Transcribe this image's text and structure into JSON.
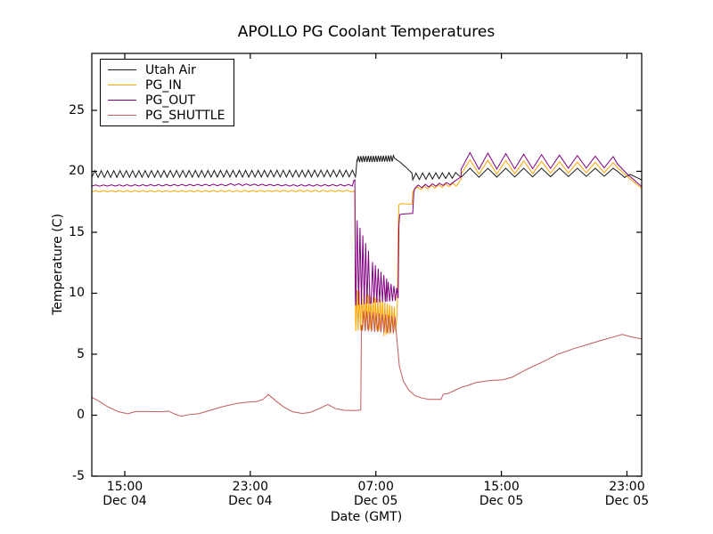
{
  "chart_data": {
    "type": "line",
    "title": "APOLLO PG Coolant Temperatures",
    "xlabel": "Date (GMT)",
    "ylabel": "Temperature (C)",
    "x_unit": "hours since Dec 04 00:00 GMT",
    "xlim": [
      12.9,
      47.94
    ],
    "ylim": [
      -5,
      29.67
    ],
    "grid": false,
    "x_ticks": [
      {
        "v": 15,
        "time": "15:00",
        "date": "Dec 04"
      },
      {
        "v": 23,
        "time": "23:00",
        "date": "Dec 04"
      },
      {
        "v": 31,
        "time": "07:00",
        "date": "Dec 05"
      },
      {
        "v": 39,
        "time": "15:00",
        "date": "Dec 05"
      },
      {
        "v": 47,
        "time": "23:00",
        "date": "Dec 05"
      }
    ],
    "y_ticks": [
      {
        "v": -5,
        "label": "-5"
      },
      {
        "v": 0,
        "label": "0"
      },
      {
        "v": 5,
        "label": "5"
      },
      {
        "v": 10,
        "label": "10"
      },
      {
        "v": 15,
        "label": "15"
      },
      {
        "v": 20,
        "label": "20"
      },
      {
        "v": 25,
        "label": "25"
      }
    ],
    "legend": {
      "position": "upper-left",
      "items": [
        "Utah Air",
        "PG_IN",
        "PG_OUT",
        "PG_SHUTTLE"
      ]
    },
    "series": [
      {
        "name": "Utah Air",
        "color": "#1a1a1a",
        "segments": [
          {
            "t": "osc",
            "x0": 12.9,
            "x1": 29.7,
            "lo0": 19.5,
            "lo1": 19.55,
            "hi0": 20.05,
            "hi1": 20.1,
            "p": 0.4
          },
          {
            "t": "pts",
            "pts": [
              [
                29.73,
                19.85
              ],
              [
                29.8,
                21.0
              ]
            ]
          },
          {
            "t": "osc",
            "x0": 29.8,
            "x1": 32.18,
            "lo0": 20.75,
            "lo1": 20.8,
            "hi0": 21.25,
            "hi1": 21.3,
            "p": 0.16
          },
          {
            "t": "pts",
            "pts": [
              [
                32.2,
                21.05
              ],
              [
                32.55,
                20.75
              ],
              [
                32.9,
                20.35
              ],
              [
                33.3,
                19.85
              ]
            ]
          },
          {
            "t": "osc",
            "x0": 33.35,
            "x1": 36.2,
            "lo0": 19.3,
            "lo1": 19.45,
            "hi0": 19.85,
            "hi1": 19.9,
            "p": 0.42
          },
          {
            "t": "pts",
            "pts": [
              [
                36.43,
                19.5
              ]
            ]
          },
          {
            "t": "osc",
            "x0": 36.43,
            "x1": 46.26,
            "lo0": 19.5,
            "lo1": 19.6,
            "hi0": 20.25,
            "hi1": 20.25,
            "p": 1.14
          },
          {
            "t": "pts",
            "pts": [
              [
                46.4,
                20.0
              ],
              [
                46.85,
                19.5
              ],
              [
                47.2,
                19.75
              ],
              [
                47.94,
                19.3
              ]
            ]
          }
        ]
      },
      {
        "name": "PG_IN",
        "color": "#FFA500",
        "segments": [
          {
            "t": "osc",
            "x0": 12.9,
            "x1": 29.64,
            "lo0": 18.3,
            "lo1": 18.33,
            "hi0": 18.42,
            "hi1": 18.45,
            "p": 0.5
          },
          {
            "t": "pts",
            "pts": [
              [
                29.66,
                18.35
              ],
              [
                29.7,
                8.8
              ]
            ]
          },
          {
            "t": "osc",
            "x0": 29.72,
            "x1": 30.6,
            "lo0": 6.9,
            "lo1": 7.1,
            "hi0": 10.3,
            "hi1": 9.9,
            "p": 0.15
          },
          {
            "t": "osc",
            "x0": 30.6,
            "x1": 31.5,
            "lo0": 7.0,
            "lo1": 6.9,
            "hi0": 9.8,
            "hi1": 9.4,
            "p": 0.15
          },
          {
            "t": "osc",
            "x0": 31.5,
            "x1": 32.3,
            "lo0": 6.5,
            "lo1": 6.9,
            "hi0": 9.3,
            "hi1": 8.8,
            "p": 0.15
          },
          {
            "t": "pts",
            "pts": [
              [
                32.36,
                8.2
              ],
              [
                32.42,
                15.2
              ],
              [
                32.47,
                17.25
              ],
              [
                32.6,
                17.35
              ],
              [
                33.3,
                17.3
              ],
              [
                33.36,
                18.35
              ]
            ]
          },
          {
            "t": "osc",
            "x0": 33.42,
            "x1": 36.15,
            "lo0": 18.45,
            "lo1": 18.8,
            "hi0": 18.7,
            "hi1": 19.05,
            "p": 0.45
          },
          {
            "t": "pts",
            "pts": [
              [
                36.43,
                19.35
              ]
            ]
          },
          {
            "t": "osc",
            "x0": 36.43,
            "x1": 46.26,
            "lo0": 19.75,
            "lo1": 19.9,
            "hi0": 20.95,
            "hi1": 20.7,
            "p": 1.14
          },
          {
            "t": "pts",
            "pts": [
              [
                46.4,
                20.3
              ],
              [
                47.0,
                19.6
              ],
              [
                47.94,
                18.6
              ]
            ]
          }
        ]
      },
      {
        "name": "PG_OUT",
        "color": "#800080",
        "segments": [
          {
            "t": "osc",
            "x0": 12.9,
            "x1": 21.5,
            "lo0": 18.78,
            "lo1": 18.82,
            "hi0": 18.88,
            "hi1": 18.95,
            "p": 0.5
          },
          {
            "t": "osc",
            "x0": 21.5,
            "x1": 25.5,
            "lo0": 18.85,
            "lo1": 18.8,
            "hi0": 19.0,
            "hi1": 18.9,
            "p": 0.5
          },
          {
            "t": "osc",
            "x0": 25.5,
            "x1": 29.55,
            "lo0": 18.78,
            "lo1": 18.8,
            "hi0": 18.9,
            "hi1": 18.92,
            "p": 0.5
          },
          {
            "t": "pts",
            "pts": [
              [
                29.6,
                19.25
              ],
              [
                29.66,
                19.3
              ],
              [
                29.7,
                9.3
              ]
            ]
          },
          {
            "t": "osc",
            "x0": 29.72,
            "x1": 30.7,
            "lo0": 9.0,
            "lo1": 9.2,
            "hi0": 16.3,
            "hi1": 12.9,
            "p": 0.18
          },
          {
            "t": "osc",
            "x0": 30.7,
            "x1": 31.7,
            "lo0": 9.2,
            "lo1": 9.3,
            "hi0": 12.7,
            "hi1": 11.2,
            "p": 0.18
          },
          {
            "t": "osc",
            "x0": 31.7,
            "x1": 32.38,
            "lo0": 9.3,
            "lo1": 9.4,
            "hi0": 11.0,
            "hi1": 10.4,
            "p": 0.18
          },
          {
            "t": "pts",
            "pts": [
              [
                32.42,
                9.6
              ],
              [
                32.47,
                15.6
              ],
              [
                32.52,
                16.45
              ],
              [
                32.7,
                16.5
              ],
              [
                33.35,
                16.55
              ],
              [
                33.42,
                18.3
              ]
            ]
          },
          {
            "t": "osc",
            "x0": 33.48,
            "x1": 36.15,
            "lo0": 18.6,
            "lo1": 18.95,
            "hi0": 18.85,
            "hi1": 19.15,
            "p": 0.45
          },
          {
            "t": "pts",
            "pts": [
              [
                36.43,
                19.55
              ]
            ]
          },
          {
            "t": "osc",
            "x0": 36.43,
            "x1": 46.26,
            "lo0": 20.15,
            "lo1": 20.3,
            "hi0": 21.55,
            "hi1": 21.2,
            "p": 1.14
          },
          {
            "t": "pts",
            "pts": [
              [
                46.4,
                20.6
              ],
              [
                47.0,
                19.8
              ],
              [
                47.94,
                18.75
              ]
            ]
          }
        ]
      },
      {
        "name": "PG_SHUTTLE",
        "color": "#C25B5B",
        "segments": [
          {
            "t": "pts",
            "pts": [
              [
                12.9,
                1.45
              ],
              [
                13.3,
                1.2
              ],
              [
                13.9,
                0.7
              ],
              [
                14.6,
                0.28
              ],
              [
                15.2,
                0.12
              ],
              [
                15.7,
                0.3
              ],
              [
                16.6,
                0.3
              ],
              [
                17.3,
                0.28
              ],
              [
                17.8,
                0.33
              ],
              [
                18.2,
                0.08
              ],
              [
                18.6,
                -0.08
              ],
              [
                19.1,
                0.05
              ],
              [
                19.7,
                0.12
              ],
              [
                20.4,
                0.38
              ],
              [
                21.3,
                0.72
              ],
              [
                22.2,
                0.98
              ],
              [
                22.9,
                1.08
              ],
              [
                23.4,
                1.12
              ],
              [
                23.8,
                1.28
              ],
              [
                24.15,
                1.7
              ],
              [
                24.6,
                1.2
              ],
              [
                25.1,
                0.7
              ],
              [
                25.7,
                0.28
              ],
              [
                26.3,
                0.15
              ],
              [
                26.8,
                0.22
              ],
              [
                27.5,
                0.6
              ],
              [
                27.95,
                0.88
              ],
              [
                28.4,
                0.55
              ],
              [
                29.0,
                0.4
              ],
              [
                29.6,
                0.38
              ],
              [
                30.04,
                0.42
              ],
              [
                30.08,
                7.4
              ]
            ]
          },
          {
            "t": "osc",
            "x0": 30.12,
            "x1": 32.26,
            "lo0": 6.9,
            "lo1": 6.7,
            "hi0": 8.6,
            "hi1": 8.1,
            "p": 0.2
          },
          {
            "t": "pts",
            "pts": [
              [
                32.3,
                6.8
              ],
              [
                32.5,
                4.0
              ],
              [
                32.75,
                2.8
              ],
              [
                33.1,
                2.05
              ],
              [
                33.5,
                1.6
              ],
              [
                33.95,
                1.4
              ],
              [
                34.4,
                1.3
              ],
              [
                35.15,
                1.3
              ],
              [
                35.3,
                1.72
              ],
              [
                35.6,
                1.78
              ],
              [
                36.1,
                2.08
              ],
              [
                36.5,
                2.32
              ],
              [
                36.8,
                2.42
              ],
              [
                37.4,
                2.68
              ],
              [
                38.3,
                2.85
              ],
              [
                39.1,
                2.9
              ],
              [
                39.7,
                3.12
              ],
              [
                40.6,
                3.75
              ],
              [
                41.6,
                4.35
              ],
              [
                42.6,
                5.0
              ],
              [
                43.6,
                5.45
              ],
              [
                44.5,
                5.8
              ],
              [
                45.4,
                6.15
              ],
              [
                46.1,
                6.4
              ],
              [
                46.7,
                6.62
              ],
              [
                47.2,
                6.45
              ],
              [
                47.94,
                6.25
              ]
            ]
          }
        ]
      }
    ]
  }
}
